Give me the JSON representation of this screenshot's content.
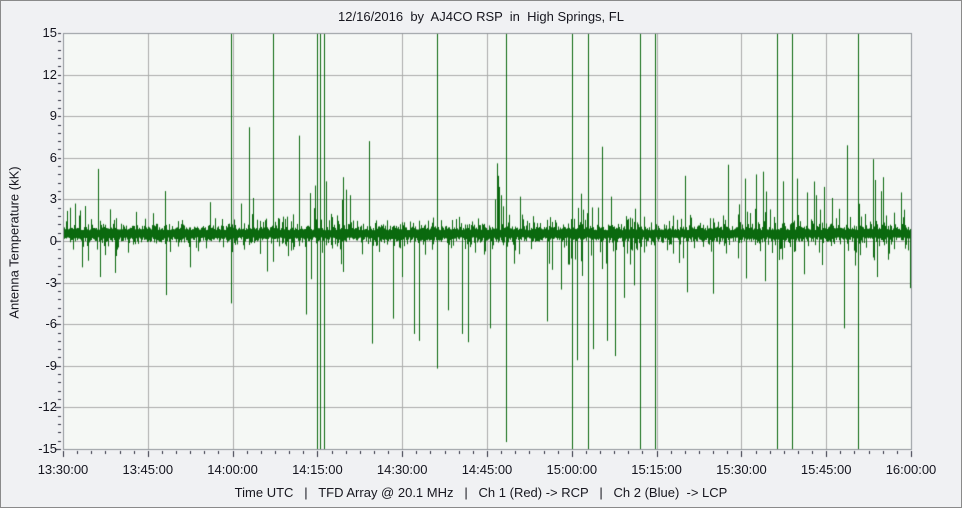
{
  "header": {
    "title": "12/16/2016  by  AJ4CO RSP  in  High Springs, FL"
  },
  "footer": {
    "caption": "Time UTC   |   TFD Array @ 20.1 MHz   |   Ch 1 (Red) -> RCP   |   Ch 2 (Blue)  -> LCP"
  },
  "colors": {
    "trace_green": "#0a690e",
    "grid": "#ababab",
    "frame": "#8f9399",
    "plot_background": "#f5f8f5",
    "outer_background": "#f0f1f3",
    "tick": "#2a2a3a",
    "text": "#17171f"
  },
  "chart_data": {
    "type": "line",
    "title": "12/16/2016  by  AJ4CO RSP  in  High Springs, FL",
    "xlabel": "Time UTC",
    "ylabel": "Antenna Temperature (kK)",
    "caption_parts": [
      "Time UTC",
      "TFD Array @ 20.1 MHz",
      "Ch 1 (Red) -> RCP",
      "Ch 2 (Blue)  -> LCP"
    ],
    "x_tick_labels": [
      "13:30:00",
      "13:45:00",
      "14:00:00",
      "14:15:00",
      "14:30:00",
      "14:45:00",
      "15:00:00",
      "15:15:00",
      "15:30:00",
      "15:45:00",
      "16:00:00"
    ],
    "x_major_step_min": 15,
    "x_minor_step_min": 2.5,
    "x_range_minutes": [
      0,
      150
    ],
    "y_tick_labels": [
      15,
      12,
      9,
      6,
      3,
      0,
      -3,
      -6,
      -9,
      -12,
      -15
    ],
    "y_major_step": 3,
    "y_minor_step": 0.6,
    "ylim": [
      -15,
      15
    ],
    "grid": true,
    "legend_position": "none",
    "series": [
      {
        "name": "antenna-temperature",
        "color": "#0a690e",
        "noise": {
          "baseline_kK": 0.55,
          "core_up_kK": 0.5,
          "core_dn_kK": 0.6,
          "hair_up_scale": 0.35,
          "hair_dn_scale": 0.4,
          "seed": 1216
        },
        "noise_regions_t0_t1_upboost_dnboost": [
          [
            0,
            4,
            0.5,
            0.2
          ],
          [
            43.5,
            48.5,
            1.4,
            1.0
          ],
          [
            48.5,
            52,
            0.7,
            0.3
          ],
          [
            75.8,
            78.5,
            0.7,
            0.2
          ],
          [
            89,
            99.5,
            0.5,
            1.6
          ],
          [
            119,
            137.5,
            0.9,
            0.2
          ],
          [
            140,
            147,
            0.7,
            0.2
          ]
        ],
        "point_spikes_t_min_value_kK": [
          [
            1.3,
            2.4
          ],
          [
            2.1,
            2.7
          ],
          [
            3.0,
            2.2
          ],
          [
            3.3,
            -1.9
          ],
          [
            6.2,
            5.2
          ],
          [
            6.5,
            -2.6
          ],
          [
            9.2,
            -2.3
          ],
          [
            13.0,
            2.1
          ],
          [
            18.0,
            3.6
          ],
          [
            18.3,
            -3.9
          ],
          [
            22.5,
            -1.9
          ],
          [
            26.0,
            2.8
          ],
          [
            31.5,
            2.7
          ],
          [
            32.9,
            8.2
          ],
          [
            33.6,
            3.1
          ],
          [
            36.0,
            -2.2
          ],
          [
            41.8,
            7.6
          ],
          [
            42.9,
            -5.3
          ],
          [
            44.5,
            4.0
          ],
          [
            46.6,
            4.3
          ],
          [
            49.6,
            4.6
          ],
          [
            50.1,
            3.7
          ],
          [
            50.7,
            3.3
          ],
          [
            54.1,
            7.2
          ],
          [
            54.6,
            -7.4
          ],
          [
            58.4,
            -5.6
          ],
          [
            60.0,
            -2.6
          ],
          [
            62.0,
            -6.7
          ],
          [
            62.9,
            -7.2
          ],
          [
            68.1,
            -5.0
          ],
          [
            70.6,
            -6.7
          ],
          [
            71.7,
            -7.3
          ],
          [
            75.6,
            -6.3
          ],
          [
            76.4,
            3.0
          ],
          [
            76.7,
            5.6
          ],
          [
            77.0,
            4.7
          ],
          [
            77.2,
            3.9
          ],
          [
            77.5,
            3.3
          ],
          [
            77.9,
            2.5
          ],
          [
            80.9,
            3.2
          ],
          [
            85.7,
            -5.8
          ],
          [
            88.1,
            -3.5
          ],
          [
            91.0,
            -8.6
          ],
          [
            93.8,
            -7.8
          ],
          [
            95.4,
            6.8
          ],
          [
            96.3,
            -7.2
          ],
          [
            97.0,
            3.2
          ],
          [
            97.7,
            -8.3
          ],
          [
            99.2,
            -4.1
          ],
          [
            101.0,
            -3.2
          ],
          [
            110.1,
            4.7
          ],
          [
            110.4,
            -3.7
          ],
          [
            114.9,
            -3.8
          ],
          [
            117.6,
            5.5
          ],
          [
            120.7,
            4.5
          ],
          [
            120.9,
            -2.7
          ],
          [
            122.5,
            4.8
          ],
          [
            123.9,
            5.0
          ],
          [
            124.1,
            -2.9
          ],
          [
            127.3,
            4.3
          ],
          [
            129.8,
            4.5
          ],
          [
            131.0,
            -2.4
          ],
          [
            131.6,
            3.5
          ],
          [
            133.2,
            3.3
          ],
          [
            134.6,
            3.9
          ],
          [
            136.1,
            3.1
          ],
          [
            138.1,
            -6.3
          ],
          [
            138.7,
            6.9
          ],
          [
            143.2,
            5.9
          ],
          [
            143.7,
            4.4
          ],
          [
            144.0,
            -2.6
          ],
          [
            145.0,
            4.6
          ],
          [
            148.2,
            3.5
          ],
          [
            149.8,
            -3.4
          ]
        ],
        "clipped_lines_t_min_hi_lo_kK": [
          [
            29.8,
            15,
            -4.5
          ],
          [
            37.1,
            15,
            -1.5
          ],
          [
            44.9,
            15,
            -15
          ],
          [
            45.5,
            15,
            -15
          ],
          [
            46.2,
            15,
            -15
          ],
          [
            66.2,
            15,
            -9.2
          ],
          [
            78.4,
            15,
            -14.5
          ],
          [
            90.0,
            15,
            -15
          ],
          [
            92.9,
            15,
            -15
          ],
          [
            102.1,
            15,
            -15
          ],
          [
            104.7,
            15,
            -15
          ],
          [
            126.3,
            15,
            -15
          ],
          [
            128.9,
            15,
            -15
          ],
          [
            140.7,
            15,
            -15
          ]
        ]
      }
    ]
  }
}
